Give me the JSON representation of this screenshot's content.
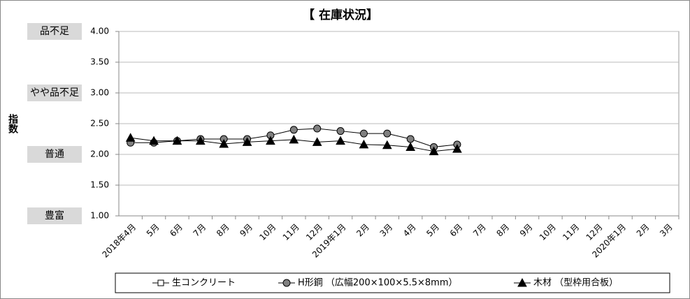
{
  "chart_data": {
    "type": "line",
    "title": "【 在庫状況】",
    "y_label": "指数",
    "categories": [
      "2018年4月",
      "5月",
      "6月",
      "7月",
      "8月",
      "9月",
      "10月",
      "11月",
      "12月",
      "2019年1月",
      "2月",
      "3月",
      "4月",
      "5月",
      "6月",
      "7月",
      "8月",
      "9月",
      "10月",
      "11月",
      "12月",
      "2020年1月",
      "2月",
      "3月"
    ],
    "series": [
      {
        "name": "生コンクリート",
        "color": "#ffffff",
        "marker": "square",
        "values": [
          null,
          null,
          null,
          null,
          null,
          null,
          null,
          null,
          null,
          null,
          null,
          null,
          null,
          null,
          null,
          null,
          null,
          null,
          null,
          null,
          null,
          null,
          null,
          null
        ]
      },
      {
        "name": "H形鋼 （広幅200×100×5.5×8mm）",
        "color": "#808080",
        "marker": "circle",
        "values": [
          2.19,
          2.19,
          2.22,
          2.25,
          2.25,
          2.25,
          2.31,
          2.4,
          2.42,
          2.38,
          2.34,
          2.34,
          2.25,
          2.12,
          2.16,
          null,
          null,
          null,
          null,
          null,
          null,
          null,
          null,
          null
        ]
      },
      {
        "name": "木材 （型枠用合板）",
        "color": "#000000",
        "marker": "triangle",
        "values": [
          2.27,
          2.22,
          2.22,
          2.22,
          2.17,
          2.2,
          2.22,
          2.24,
          2.2,
          2.22,
          2.16,
          2.15,
          2.12,
          2.05,
          2.09,
          null,
          null,
          null,
          null,
          null,
          null,
          null,
          null,
          null
        ]
      }
    ],
    "ylim": [
      1,
      4
    ],
    "yticks": [
      {
        "value": 1,
        "label": "1.00"
      },
      {
        "value": 1.5,
        "label": "1.50"
      },
      {
        "value": 2,
        "label": "2.00"
      },
      {
        "value": 2.5,
        "label": "2.50"
      },
      {
        "value": 3,
        "label": "3.00"
      },
      {
        "value": 3.5,
        "label": "3.50"
      },
      {
        "value": 4,
        "label": "4.00"
      }
    ],
    "level_labels": [
      {
        "value": 4,
        "label": "品不足"
      },
      {
        "value": 3,
        "label": "やや品不足"
      },
      {
        "value": 2,
        "label": "普通"
      },
      {
        "value": 1,
        "label": "豊富"
      }
    ],
    "grid": true
  }
}
